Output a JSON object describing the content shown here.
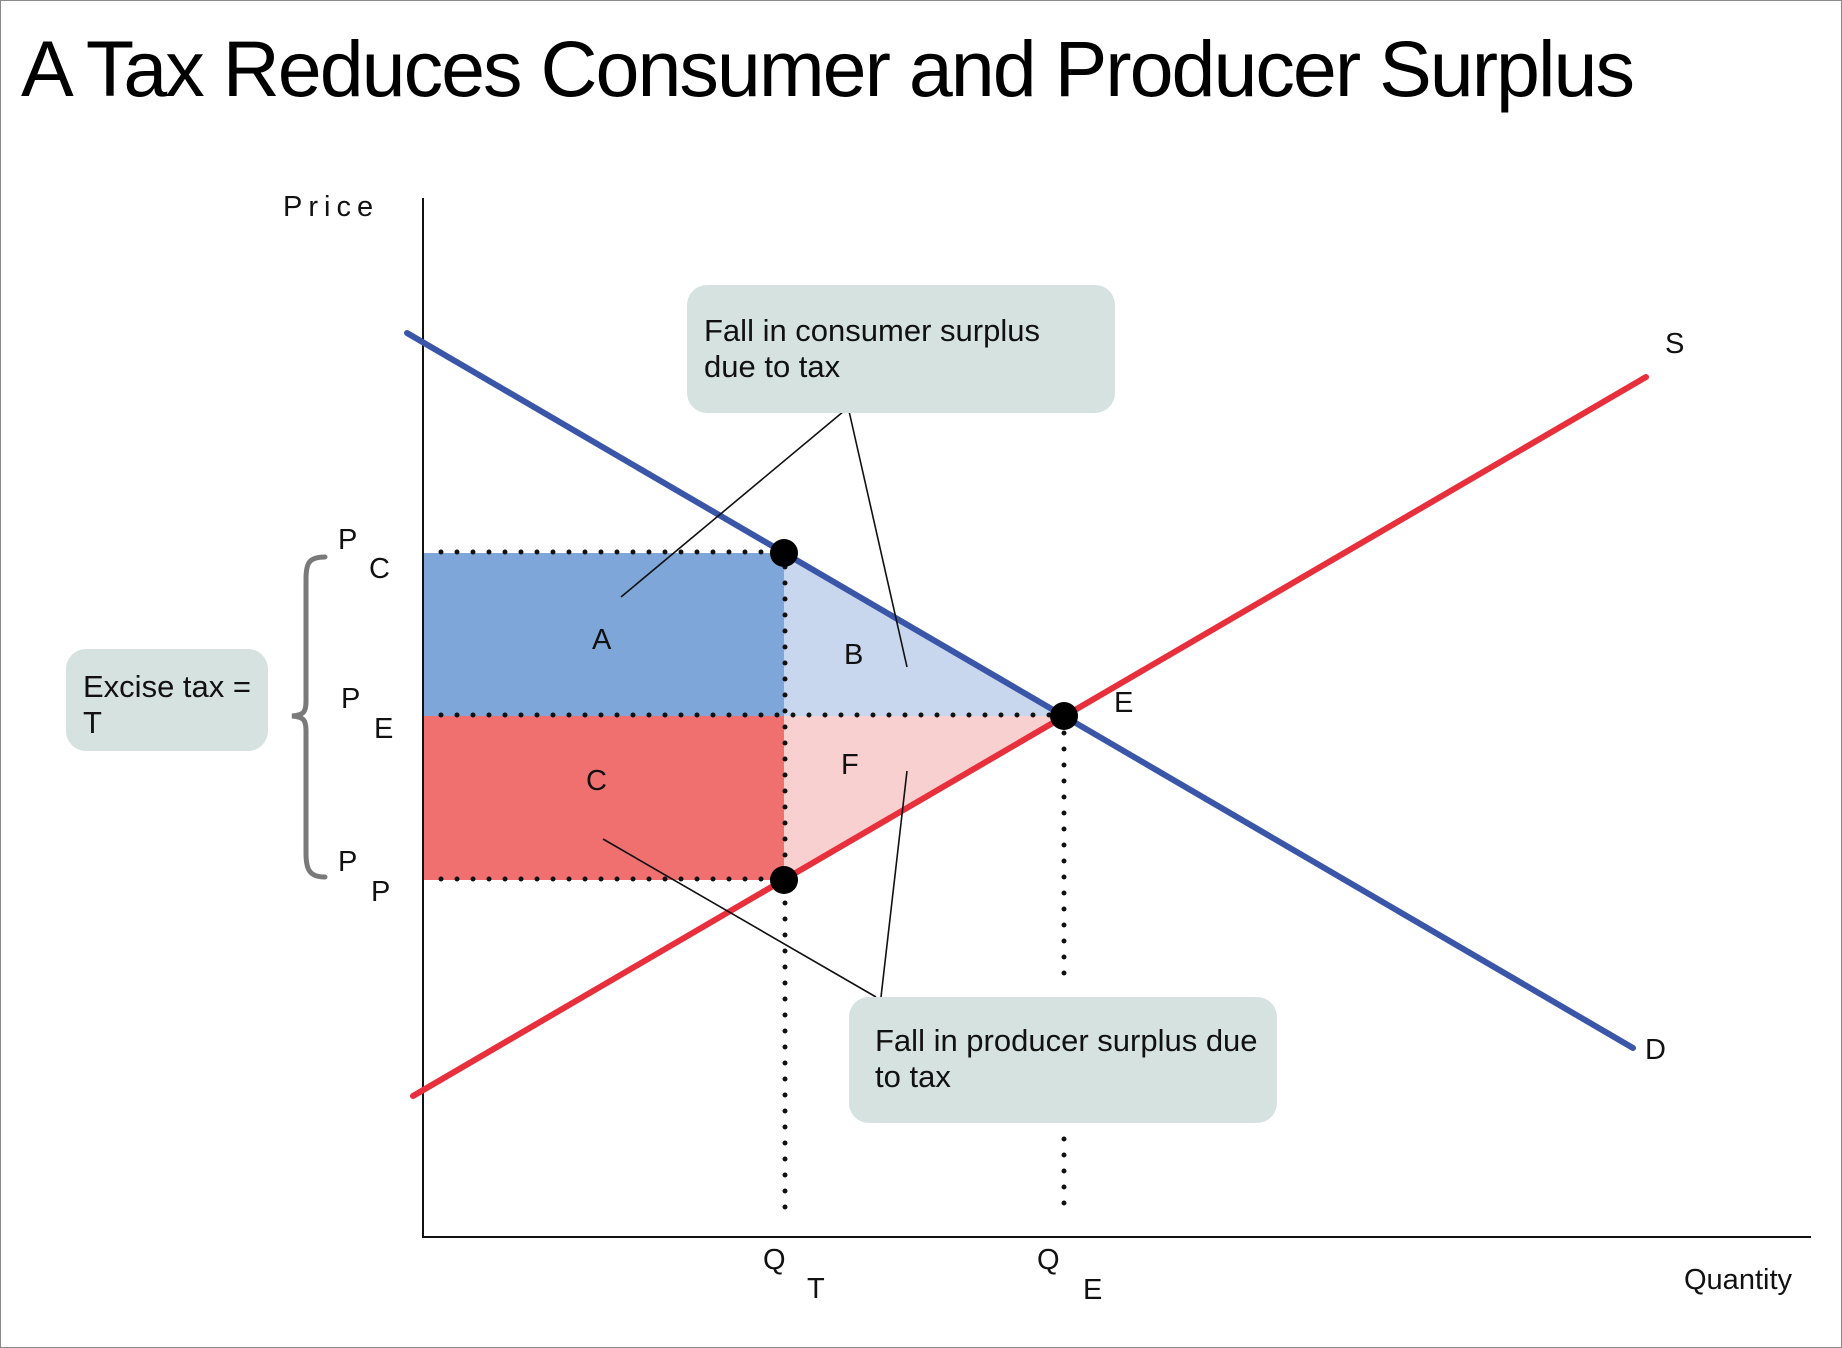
{
  "title": "A Tax Reduces Consumer and Producer Surplus",
  "axes": {
    "y_label": "Price",
    "x_label": "Quantity"
  },
  "curves": {
    "supply_label": "S",
    "demand_label": "D"
  },
  "price_labels": {
    "pc": {
      "main": "P",
      "sub": "C"
    },
    "pe": {
      "main": "P",
      "sub": "E"
    },
    "pp": {
      "main": "P",
      "sub": "P"
    }
  },
  "quantity_labels": {
    "qt": {
      "main": "Q",
      "sub": "T"
    },
    "qe": {
      "main": "Q",
      "sub": "E"
    }
  },
  "equilibrium_label": "E",
  "regions": {
    "a": "A",
    "b": "B",
    "c": "C",
    "f": "F"
  },
  "callouts": {
    "consumer": "Fall in consumer surplus due to tax",
    "producer": "Fall in producer surplus due to tax",
    "tax": "Excise tax = T"
  },
  "colors": {
    "supply": "#e8303c",
    "demand": "#3a56a8",
    "consumer_rect": "#7ea6d8",
    "consumer_triangle": "#c8d6ee",
    "producer_rect": "#f07070",
    "producer_triangle": "#f8d0d0",
    "callout_fill": "#d6e2df"
  }
}
